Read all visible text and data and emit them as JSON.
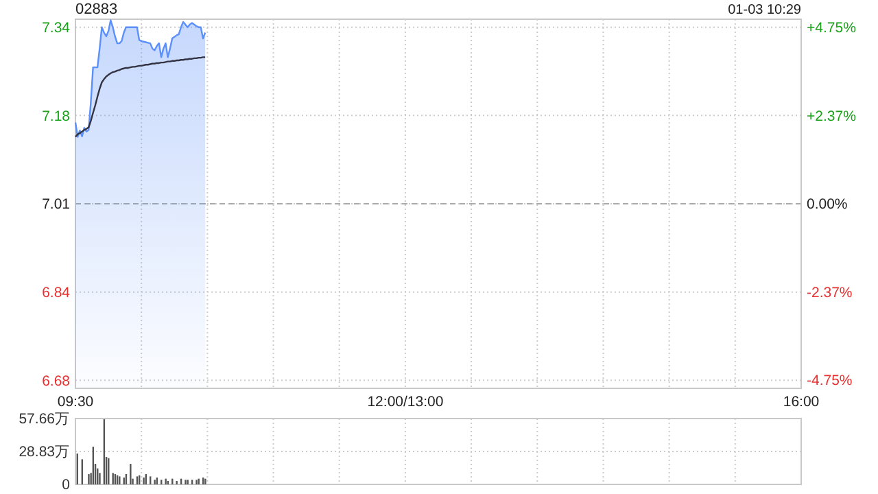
{
  "chart_data": [
    {
      "type": "line",
      "title": "02883",
      "annotations": [
        "01-03 10:29"
      ],
      "categories": [
        "09:30",
        null,
        null,
        null,
        null,
        null,
        null,
        null,
        null,
        null,
        null,
        null,
        null,
        null,
        null,
        null,
        null,
        null,
        null,
        null,
        null,
        null,
        null,
        null,
        null,
        null,
        null,
        null,
        null,
        null,
        null,
        null,
        null,
        null,
        null,
        null,
        null,
        null,
        null,
        null,
        null,
        null,
        null,
        null,
        null,
        null,
        null,
        null,
        null,
        null,
        null,
        null,
        null,
        null,
        null,
        null,
        null,
        null,
        null,
        null,
        null,
        null,
        null,
        null,
        null,
        null,
        null,
        null,
        null,
        null,
        null,
        null,
        null,
        null,
        null,
        null,
        null,
        null,
        null,
        null,
        null,
        null,
        null,
        null,
        null,
        null,
        null,
        null,
        null,
        null,
        null,
        null,
        null,
        null,
        null,
        null,
        null,
        null,
        null,
        null,
        null,
        null,
        null,
        null,
        null,
        null,
        null,
        null,
        null,
        null,
        null,
        null,
        null,
        null,
        null,
        null,
        null,
        null,
        null,
        null,
        null,
        null,
        null,
        null,
        null,
        null,
        null,
        null,
        null,
        null,
        null,
        null,
        null,
        null,
        null,
        null,
        null,
        null,
        null,
        null,
        null,
        null,
        null,
        null,
        null,
        null,
        null,
        null,
        null,
        null,
        "12:00/13:00",
        null,
        null,
        null,
        null,
        null,
        null,
        null,
        null,
        null,
        null,
        null,
        null,
        null,
        null,
        null,
        null,
        null,
        null,
        null,
        null,
        null,
        null,
        null,
        null,
        null,
        null,
        null,
        null,
        null,
        null,
        null,
        null,
        null,
        null,
        null,
        null,
        null,
        null,
        null,
        null,
        null,
        null,
        null,
        null,
        null,
        null,
        null,
        null,
        null,
        null,
        null,
        null,
        null,
        null,
        null,
        null,
        null,
        null,
        null,
        null,
        null,
        null,
        null,
        null,
        null,
        null,
        null,
        null,
        null,
        null,
        null,
        null,
        null,
        null,
        null,
        null,
        null,
        null,
        null,
        null,
        null,
        null,
        null,
        null,
        null,
        null,
        null,
        null,
        null,
        null,
        null,
        null,
        null,
        null,
        null,
        null,
        null,
        null,
        null,
        null,
        null,
        null,
        null,
        null,
        null,
        null,
        null,
        null,
        null,
        null,
        null,
        null,
        null,
        null,
        null,
        null,
        null,
        null,
        null,
        null,
        null,
        null,
        null,
        null,
        null,
        null,
        null,
        null,
        null,
        null,
        null,
        null,
        null,
        null,
        null,
        null,
        null,
        null,
        null,
        null,
        null,
        null,
        null,
        null,
        null,
        null,
        null,
        null,
        null,
        null,
        null,
        null,
        null,
        null,
        null,
        null,
        null,
        null,
        null,
        null,
        null,
        null,
        null,
        null,
        null,
        null,
        null,
        null,
        null,
        null,
        null,
        null,
        null,
        null,
        null,
        null,
        null,
        null,
        null,
        "16:00"
      ],
      "ylim": [
        6.665,
        7.355
      ],
      "yticks": [
        6.68,
        {
          "value": 6.845,
          "label": "6.84"
        },
        7.01,
        {
          "value": 7.175,
          "label": "7.18"
        },
        7.34
      ],
      "y2lim": [
        -4.97,
        4.97
      ],
      "y2ticks": [
        {
          "value": -4.75,
          "label": "-4.75%"
        },
        {
          "value": -2.375,
          "label": "-2.37%"
        },
        {
          "value": 0,
          "label": "0.00%"
        },
        {
          "value": 2.375,
          "label": "+2.37%"
        },
        {
          "value": 4.75,
          "label": "+4.75%"
        }
      ],
      "grid": true,
      "ref_lines": [
        {
          "axis": "y",
          "value": 7.01,
          "color": "#aaaaaa",
          "line_style": "dashed"
        }
      ],
      "series": [
        {
          "type": "area",
          "color": "#5b8ff9",
          "values": [
            7.162,
            7.135,
            7.147,
            7.136,
            7.152,
            7.145,
            7.148,
            7.2,
            7.265,
            7.265,
            7.265,
            7.3,
            7.34,
            7.33,
            7.323,
            7.333,
            7.353,
            7.34,
            7.323,
            7.31,
            7.31,
            7.314,
            7.33,
            7.34,
            7.34,
            7.34,
            7.34,
            7.34,
            7.34,
            7.316,
            7.314,
            7.313,
            7.312,
            7.311,
            7.31,
            7.3,
            7.297,
            7.305,
            7.31,
            7.284,
            7.3,
            7.31,
            7.284,
            7.3,
            7.319,
            7.322,
            7.325,
            7.327,
            7.34,
            7.35,
            7.345,
            7.34,
            7.345,
            7.348,
            7.345,
            7.342,
            7.34,
            7.34,
            7.319,
            7.33,
            null,
            null,
            null,
            null,
            null,
            null,
            null,
            null,
            null,
            null,
            null,
            null,
            null,
            null,
            null,
            null,
            null,
            null,
            null,
            null,
            null,
            null,
            null,
            null,
            null,
            null,
            null,
            null,
            null,
            null,
            null,
            null,
            null,
            null,
            null,
            null,
            null,
            null,
            null,
            null,
            null,
            null,
            null,
            null,
            null,
            null,
            null,
            null,
            null,
            null,
            null,
            null,
            null,
            null,
            null,
            null,
            null,
            null,
            null,
            null,
            null,
            null,
            null,
            null,
            null,
            null,
            null,
            null,
            null,
            null,
            null,
            null,
            null,
            null,
            null,
            null,
            null,
            null,
            null,
            null,
            null,
            null,
            null,
            null,
            null,
            null,
            null,
            null,
            null,
            null,
            null,
            null,
            null,
            null,
            null,
            null,
            null,
            null,
            null,
            null,
            null,
            null,
            null,
            null,
            null,
            null,
            null,
            null,
            null,
            null,
            null,
            null,
            null,
            null,
            null,
            null,
            null,
            null,
            null,
            null,
            null,
            null,
            null,
            null,
            null,
            null,
            null,
            null,
            null,
            null,
            null,
            null,
            null,
            null,
            null,
            null,
            null,
            null,
            null,
            null,
            null,
            null,
            null,
            null,
            null,
            null,
            null,
            null,
            null,
            null,
            null,
            null,
            null,
            null,
            null,
            null,
            null,
            null,
            null,
            null,
            null,
            null,
            null,
            null,
            null,
            null,
            null,
            null,
            null,
            null,
            null,
            null,
            null,
            null,
            null,
            null,
            null,
            null,
            null,
            null,
            null,
            null,
            null,
            null,
            null,
            null,
            null,
            null,
            null,
            null,
            null,
            null,
            null,
            null,
            null,
            null,
            null,
            null,
            null,
            null,
            null,
            null,
            null,
            null,
            null,
            null,
            null,
            null,
            null,
            null,
            null,
            null,
            null,
            null,
            null,
            null,
            null,
            null,
            null,
            null,
            null,
            null,
            null,
            null,
            null,
            null,
            null,
            null,
            null,
            null,
            null,
            null,
            null,
            null,
            null,
            null,
            null,
            null,
            null,
            null,
            null,
            null,
            null,
            null,
            null,
            null,
            null,
            null,
            null,
            null,
            null,
            null,
            null,
            null,
            null,
            null,
            null,
            null,
            null,
            null,
            null,
            null,
            null,
            null,
            null,
            null,
            null,
            null,
            null,
            null,
            null
          ]
        },
        {
          "type": "line",
          "color": "#333344",
          "values": [
            7.135,
            7.14,
            7.142,
            7.145,
            7.148,
            7.15,
            7.153,
            7.165,
            7.18,
            7.194,
            7.21,
            7.225,
            7.237,
            7.243,
            7.248,
            7.251,
            7.254,
            7.256,
            7.257,
            7.259,
            7.26,
            7.262,
            7.263,
            7.264,
            7.264,
            7.265,
            7.266,
            7.266,
            7.267,
            7.268,
            7.268,
            7.269,
            7.27,
            7.27,
            7.271,
            7.272,
            7.272,
            7.273,
            7.273,
            7.274,
            7.274,
            7.275,
            7.276,
            7.276,
            7.277,
            7.277,
            7.278,
            7.278,
            7.279,
            7.279,
            7.28,
            7.28,
            7.281,
            7.281,
            7.282,
            7.282,
            7.283,
            7.283,
            7.284,
            7.284,
            null,
            null,
            null,
            null,
            null,
            null,
            null,
            null,
            null,
            null,
            null,
            null,
            null,
            null,
            null,
            null,
            null,
            null,
            null,
            null,
            null,
            null,
            null,
            null,
            null,
            null,
            null,
            null,
            null,
            null,
            null,
            null,
            null,
            null,
            null,
            null,
            null,
            null,
            null,
            null,
            null,
            null,
            null,
            null,
            null,
            null,
            null,
            null,
            null,
            null,
            null,
            null,
            null,
            null,
            null,
            null,
            null,
            null,
            null,
            null,
            null,
            null,
            null,
            null,
            null,
            null,
            null,
            null,
            null,
            null,
            null,
            null,
            null,
            null,
            null,
            null,
            null,
            null,
            null,
            null,
            null,
            null,
            null,
            null,
            null,
            null,
            null,
            null,
            null,
            null,
            null,
            null,
            null,
            null,
            null,
            null,
            null,
            null,
            null,
            null,
            null,
            null,
            null,
            null,
            null,
            null,
            null,
            null,
            null,
            null,
            null,
            null,
            null,
            null,
            null,
            null,
            null,
            null,
            null,
            null,
            null,
            null,
            null,
            null,
            null,
            null,
            null,
            null,
            null,
            null,
            null,
            null,
            null,
            null,
            null,
            null,
            null,
            null,
            null,
            null,
            null,
            null,
            null,
            null,
            null,
            null,
            null,
            null,
            null,
            null,
            null,
            null,
            null,
            null,
            null,
            null,
            null,
            null,
            null,
            null,
            null,
            null,
            null,
            null,
            null,
            null,
            null,
            null,
            null,
            null,
            null,
            null,
            null,
            null,
            null,
            null,
            null,
            null,
            null,
            null,
            null,
            null,
            null,
            null,
            null,
            null,
            null,
            null,
            null,
            null,
            null,
            null,
            null,
            null,
            null,
            null,
            null,
            null,
            null,
            null,
            null,
            null,
            null,
            null,
            null,
            null,
            null,
            null,
            null,
            null,
            null,
            null,
            null,
            null,
            null,
            null,
            null,
            null,
            null,
            null,
            null,
            null,
            null,
            null,
            null,
            null,
            null,
            null,
            null,
            null,
            null,
            null,
            null,
            null,
            null,
            null,
            null,
            null,
            null,
            null,
            null,
            null,
            null,
            null,
            null,
            null,
            null,
            null,
            null,
            null,
            null,
            null,
            null,
            null,
            null,
            null,
            null,
            null,
            null,
            null,
            null,
            null,
            null,
            null,
            null,
            null,
            null,
            null,
            null,
            null,
            null
          ]
        }
      ]
    },
    {
      "type": "bar",
      "categories": [
        null,
        null,
        null,
        null,
        null,
        null,
        null,
        null,
        null,
        null,
        null,
        null,
        null,
        null,
        null,
        null,
        null,
        null,
        null,
        null,
        null,
        null,
        null,
        null,
        null,
        null,
        null,
        null,
        null,
        null,
        null,
        null,
        null,
        null,
        null,
        null,
        null,
        null,
        null,
        null,
        null,
        null,
        null,
        null,
        null,
        null,
        null,
        null,
        null,
        null,
        null,
        null,
        null,
        null,
        null,
        null,
        null,
        null,
        null,
        null,
        null,
        null,
        null,
        null,
        null,
        null,
        null,
        null,
        null,
        null,
        null,
        null,
        null,
        null,
        null,
        null,
        null,
        null,
        null,
        null,
        null,
        null,
        null,
        null,
        null,
        null,
        null,
        null,
        null,
        null,
        null,
        null,
        null,
        null,
        null,
        null,
        null,
        null,
        null,
        null,
        null,
        null,
        null,
        null,
        null,
        null,
        null,
        null,
        null,
        null,
        null,
        null,
        null,
        null,
        null,
        null,
        null,
        null,
        null,
        null,
        null,
        null,
        null,
        null,
        null,
        null,
        null,
        null,
        null,
        null,
        null,
        null,
        null,
        null,
        null,
        null,
        null,
        null,
        null,
        null,
        null,
        null,
        null,
        null,
        null,
        null,
        null,
        null,
        null,
        null,
        null,
        null,
        null,
        null,
        null,
        null,
        null,
        null,
        null,
        null,
        null,
        null,
        null,
        null,
        null,
        null,
        null,
        null,
        null,
        null,
        null,
        null,
        null,
        null,
        null,
        null,
        null,
        null,
        null,
        null,
        null,
        null,
        null,
        null,
        null,
        null,
        null,
        null,
        null,
        null,
        null,
        null,
        null,
        null,
        null,
        null,
        null,
        null,
        null,
        null,
        null,
        null,
        null,
        null,
        null,
        null,
        null,
        null,
        null,
        null,
        null,
        null,
        null,
        null,
        null,
        null,
        null,
        null,
        null,
        null,
        null,
        null,
        null,
        null,
        null,
        null,
        null,
        null,
        null,
        null,
        null,
        null,
        null,
        null,
        null,
        null,
        null,
        null,
        null,
        null,
        null,
        null,
        null,
        null,
        null,
        null,
        null,
        null,
        null,
        null,
        null,
        null,
        null,
        null,
        null,
        null,
        null,
        null,
        null,
        null,
        null,
        null,
        null,
        null,
        null,
        null,
        null,
        null,
        null,
        null,
        null,
        null,
        null,
        null,
        null,
        null,
        null,
        null,
        null,
        null,
        null,
        null,
        null,
        null,
        null,
        null,
        null,
        null,
        null,
        null,
        null,
        null,
        null,
        null,
        null,
        null,
        null,
        null,
        null,
        null,
        null,
        null,
        null,
        null,
        null,
        null,
        null,
        null,
        null,
        null,
        null,
        null,
        null,
        null,
        null,
        null,
        null,
        null,
        null,
        null,
        null,
        null,
        null,
        null,
        null,
        null,
        null,
        null,
        null,
        null,
        null
      ],
      "ylim": [
        0,
        57.66
      ],
      "yticks": [
        0,
        {
          "value": 28.83,
          "label": "28.83万"
        },
        {
          "value": 57.66,
          "label": "57.66万"
        }
      ],
      "grid": true,
      "tick_labels": "y",
      "series": [
        {
          "color": "#555555",
          "values": [
            27,
            null,
            null,
            22,
            null,
            null,
            9,
            10,
            33,
            18,
            14,
            10,
            null,
            57,
            24,
            23,
            null,
            10,
            9,
            8,
            7,
            null,
            6,
            9,
            null,
            18,
            5,
            null,
            7,
            8,
            null,
            6,
            9,
            null,
            7,
            null,
            4,
            6,
            null,
            4,
            null,
            5,
            3,
            null,
            5,
            null,
            3,
            null,
            5,
            null,
            4,
            4,
            null,
            4,
            null,
            4,
            5,
            null,
            6,
            5,
            null,
            null,
            null,
            null,
            null,
            null,
            null,
            null,
            null,
            null,
            null,
            null,
            null,
            null,
            null,
            null,
            null,
            null,
            null,
            null,
            null,
            null,
            null,
            null,
            null,
            null,
            null,
            null,
            null,
            null,
            null,
            null,
            null,
            null,
            null,
            null,
            null,
            null,
            null,
            null,
            null,
            null,
            null,
            null,
            null,
            null,
            null,
            null,
            null,
            null,
            null,
            null,
            null,
            null,
            null,
            null,
            null,
            null,
            null,
            null,
            null,
            null,
            null,
            null,
            null,
            null,
            null,
            null,
            null,
            null,
            null,
            null,
            null,
            null,
            null,
            null,
            null,
            null,
            null,
            null,
            null,
            null,
            null,
            null,
            null,
            null,
            null,
            null,
            null,
            null,
            null,
            null,
            null,
            null,
            null,
            null,
            null,
            null,
            null,
            null,
            null,
            null,
            null,
            null,
            null,
            null,
            null,
            null,
            null,
            null,
            null,
            null,
            null,
            null,
            null,
            null,
            null,
            null,
            null,
            null,
            null,
            null,
            null,
            null,
            null,
            null,
            null,
            null,
            null,
            null,
            null,
            null,
            null,
            null,
            null,
            null,
            null,
            null,
            null,
            null,
            null,
            null,
            null,
            null,
            null,
            null,
            null,
            null,
            null,
            null,
            null,
            null,
            null,
            null,
            null,
            null,
            null,
            null,
            null,
            null,
            null,
            null,
            null,
            null,
            null,
            null,
            null,
            null,
            null,
            null,
            null,
            null,
            null,
            null,
            null,
            null,
            null,
            null,
            null,
            null,
            null,
            null,
            null,
            null,
            null,
            null,
            null,
            null,
            null,
            null,
            null,
            null,
            null,
            null,
            null,
            null,
            null,
            null,
            null,
            null,
            null,
            null,
            null,
            null,
            null,
            null,
            null,
            null,
            null,
            null,
            null,
            null,
            null,
            null,
            null,
            null,
            null,
            null,
            null,
            null,
            null,
            null,
            null,
            null,
            null,
            null,
            null,
            null,
            null,
            null,
            null,
            null,
            null,
            null,
            null,
            null,
            null,
            null,
            null,
            null,
            null,
            null,
            null,
            null,
            null,
            null,
            null,
            null,
            null,
            null,
            null,
            null,
            null,
            null,
            null,
            null,
            null,
            null,
            null,
            null,
            null,
            null,
            null,
            null,
            null,
            null,
            null,
            null,
            null,
            null,
            null
          ]
        }
      ]
    }
  ]
}
